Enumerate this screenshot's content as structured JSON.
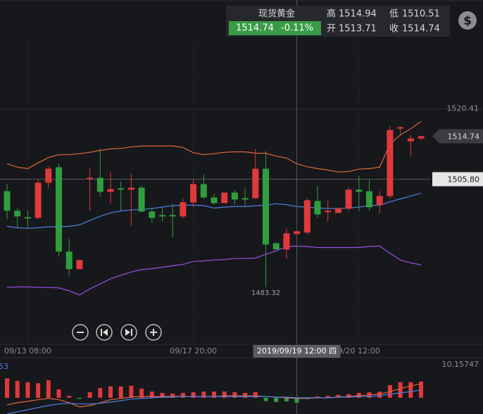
{
  "header": {
    "title": "现货黄金",
    "price": 1514.74,
    "change": "-0.11%",
    "high": {
      "label": "高",
      "value": 1514.94
    },
    "low": {
      "label": "低",
      "value": 1510.51
    },
    "open": {
      "label": "开",
      "value": 1513.71
    },
    "close": {
      "label": "收",
      "value": 1514.74
    },
    "icon": "$"
  },
  "chart_data": {
    "type": "candlestick",
    "categories": [
      null,
      null,
      "09/13 08:00",
      null,
      null,
      null,
      null,
      null,
      null,
      null,
      null,
      null,
      null,
      null,
      null,
      null,
      null,
      null,
      "09/17 20:00",
      null,
      null,
      null,
      null,
      null,
      null,
      null,
      null,
      null,
      "2019/09/19 12:00 四",
      null,
      null,
      null,
      null,
      null,
      "9/20 12:00",
      null,
      null,
      null,
      null,
      null,
      null
    ],
    "open": [
      1503.31,
      1499.23,
      1497.91,
      1497.76,
      1505.07,
      1508.28,
      1490.75,
      1487.1,
      1505.8,
      1506.09,
      1503.17,
      1503.9,
      1503.61,
      1504.05,
      1499.08,
      1498.35,
      1498.35,
      1498.06,
      1500.98,
      1504.78,
      1502.0,
      1500.83,
      1503.02,
      1501.86,
      1501.86,
      1507.99,
      1492.5,
      1491.19,
      1494.4,
      1494.7,
      1501.27,
      1498.93,
      1498.79,
      1499.66,
      1503.61,
      1503.31,
      1500.39,
      1502.29,
      1516.32,
      1513.69,
      1514.27
    ],
    "high": [
      1504.78,
      1499.81,
      1499.23,
      1505.8,
      1508.43,
      1509.01,
      1493.38,
      1489.0,
      1507.99,
      1512.08,
      1507.26,
      1505.36,
      1506.97,
      1504.34,
      1499.96,
      1499.81,
      1500.69,
      1501.71,
      1505.8,
      1506.82,
      1502.73,
      1503.02,
      1503.61,
      1503.9,
      1512.08,
      1511.64,
      1492.5,
      1495.57,
      1494.99,
      1501.86,
      1504.34,
      1501.42,
      1499.81,
      1504.05,
      1506.53,
      1505.8,
      1503.31,
      1516.76,
      1516.76,
      1515.0,
      1514.86
    ],
    "low": [
      1497.47,
      1495.57,
      1495.57,
      1497.47,
      1503.9,
      1489.73,
      1485.78,
      1487.1,
      1499.23,
      1502.15,
      1500.69,
      1499.23,
      1496.01,
      1498.93,
      1496.74,
      1497.03,
      1493.67,
      1497.76,
      1499.96,
      1501.71,
      1500.54,
      1500.83,
      1500.54,
      1499.96,
      1501.71,
      1483.32,
      1491.19,
      1489.29,
      1494.4,
      1494.4,
      1497.76,
      1497.03,
      1498.79,
      1499.23,
      1499.23,
      1499.23,
      1498.64,
      1501.86,
      1515.3,
      1510.62,
      1513.84
    ],
    "close": [
      1499.23,
      1498.06,
      1497.62,
      1505.07,
      1507.99,
      1490.75,
      1487.1,
      1489.0,
      1506.09,
      1503.17,
      1503.75,
      1503.61,
      1504.05,
      1499.08,
      1497.76,
      1498.06,
      1498.06,
      1500.98,
      1504.78,
      1502.0,
      1500.83,
      1503.02,
      1501.56,
      1501.56,
      1507.99,
      1492.21,
      1491.19,
      1494.55,
      1494.99,
      1501.42,
      1498.49,
      1499.23,
      1499.81,
      1503.61,
      1503.17,
      1499.96,
      1502.29,
      1516.03,
      1516.61,
      1514.27,
      1514.74
    ],
    "up_color": "#e0393c",
    "down_color": "#2f9e3f",
    "series": [
      {
        "color": "#e0653c",
        "values": [
          1509.0,
          1508.3,
          1508.0,
          1509.2,
          1510.3,
          1510.9,
          1510.9,
          1511.1,
          1511.4,
          1511.8,
          1512.1,
          1512.2,
          1512.5,
          1512.7,
          1512.7,
          1512.7,
          1512.7,
          1512.4,
          1511.3,
          1510.9,
          1511.1,
          1511.4,
          1511.5,
          1511.5,
          1511.2,
          1511.2,
          1510.6,
          1510.2,
          1509.0,
          1508.4,
          1508.0,
          1507.7,
          1507.3,
          1507.4,
          1507.9,
          1508.0,
          1508.3,
          1513.1,
          1515.0,
          1516.3,
          1517.8
        ]
      },
      {
        "color": "#4a80e6",
        "values": [
          1496.0,
          1495.7,
          1495.6,
          1495.7,
          1495.9,
          1495.9,
          1496.0,
          1496.3,
          1497.2,
          1498.1,
          1498.8,
          1499.2,
          1499.4,
          1499.5,
          1499.7,
          1500.0,
          1500.3,
          1500.4,
          1500.4,
          1500.3,
          1499.8,
          1500.0,
          1500.1,
          1500.1,
          1500.3,
          1500.4,
          1500.7,
          1500.5,
          1500.1,
          1500.0,
          1499.8,
          1499.7,
          1499.7,
          1499.8,
          1500.0,
          1500.3,
          1500.4,
          1501.1,
          1501.7,
          1502.3,
          1502.9
        ]
      },
      {
        "color": "#9b4fe3",
        "values": [
          1483.3,
          1483.4,
          1483.4,
          1483.3,
          1483.3,
          1483.2,
          1482.6,
          1481.7,
          1483.0,
          1484.0,
          1485.1,
          1485.8,
          1486.5,
          1487.0,
          1487.2,
          1487.5,
          1487.8,
          1488.1,
          1488.7,
          1488.8,
          1489.0,
          1489.1,
          1489.3,
          1489.3,
          1489.4,
          1490.2,
          1490.9,
          1491.8,
          1491.9,
          1491.8,
          1491.6,
          1491.6,
          1491.6,
          1491.6,
          1491.6,
          1491.8,
          1491.9,
          1490.4,
          1489.0,
          1488.4,
          1488.0
        ]
      }
    ],
    "ylim": [
      1471.47,
      1543.06
    ],
    "yticks": [
      1520.41
    ],
    "crosshair": {
      "x": "2019/09/19 12:00 四",
      "y": {
        "value": 1505.8,
        "label": "1505.80"
      }
    },
    "macd": {
      "label": "53",
      "ylim": [
        -5,
        11.5
      ],
      "yticks": [
        10.15747
      ],
      "values": [
        6.0,
        5.2,
        4.8,
        4.5,
        5.4,
        2.6,
        0.6,
        -0.3,
        1.7,
        3.0,
        3.5,
        3.5,
        3.7,
        2.8,
        1.9,
        1.5,
        1.3,
        1.5,
        1.7,
        1.9,
        1.9,
        1.9,
        1.7,
        1.5,
        1.7,
        -1.0,
        -1.3,
        -1.1,
        -1.5,
        -0.4,
        0.4,
        0.6,
        0.9,
        1.1,
        1.5,
        1.7,
        1.9,
        3.9,
        4.8,
        4.8,
        5.0
      ],
      "lines": [
        {
          "color": "#e0653c",
          "values": [
            -2.2,
            -1.5,
            -1.1,
            -0.6,
            -0.2,
            -0.6,
            -1.5,
            -2.8,
            -2.4,
            -1.5,
            -0.6,
            -0.2,
            0.2,
            0.4,
            0.4,
            0.4,
            0.4,
            0.4,
            0.4,
            0.4,
            0.4,
            0.6,
            0.6,
            0.6,
            0.6,
            0.4,
            0.2,
            0,
            -0.2,
            -0.2,
            0,
            0,
            0.2,
            0.4,
            0.6,
            0.9,
            1.1,
            1.9,
            2.8,
            3.7,
            4.3
          ]
        },
        {
          "color": "#4a80e6",
          "values": [
            -5.0,
            -4.3,
            -3.7,
            -3.0,
            -2.4,
            -1.9,
            -1.7,
            -1.9,
            -1.9,
            -1.7,
            -1.3,
            -0.9,
            -0.4,
            -0.2,
            0,
            0.2,
            0.2,
            0.4,
            0.4,
            0.4,
            0.4,
            0.4,
            0.4,
            0.4,
            0.4,
            0.4,
            0.2,
            0.2,
            0,
            0,
            0,
            0,
            0.2,
            0.2,
            0.4,
            0.4,
            0.6,
            1.1,
            1.5,
            1.9,
            2.4
          ]
        }
      ]
    }
  }
}
